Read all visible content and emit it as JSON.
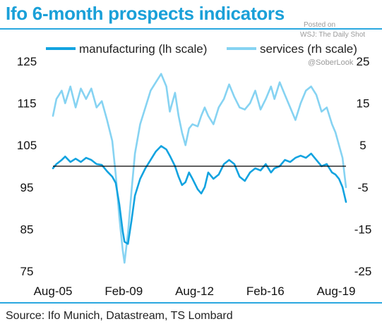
{
  "header": {
    "title": "Ifo 6-month prospects indicators"
  },
  "watermark": {
    "line1": "Posted on",
    "line2": "WSJ: The Daily Shot",
    "line3": "@SoberLook"
  },
  "footer": {
    "source": "Source: Ifo Munich, Datastream, TS Lombard"
  },
  "colors": {
    "brand": "#1aa0d8",
    "manufacturing": "#12a3e0",
    "services": "#86d3f2",
    "reference_line": "#000000"
  },
  "chart_data": {
    "type": "line",
    "title": "Ifo 6-month prospects indicators",
    "x_tick_labels": [
      "Aug-05",
      "Feb-09",
      "Aug-12",
      "Feb-16",
      "Aug-19"
    ],
    "x_range": [
      "2005-08",
      "2019-08"
    ],
    "y_left": {
      "ticks": [
        125,
        115,
        105,
        95,
        85,
        75
      ],
      "range": [
        75,
        125
      ]
    },
    "y_right": {
      "ticks": [
        25,
        15,
        5,
        -5,
        -15,
        -25
      ],
      "range": [
        -25,
        25
      ]
    },
    "reference_line": {
      "axis": "left",
      "value": 100
    },
    "grid": false,
    "legend": {
      "position": "top"
    },
    "series": [
      {
        "name": "manufacturing (lh scale)",
        "axis": "left",
        "color": "#12a3e0",
        "points": [
          [
            "2005-08",
            99.5
          ],
          [
            "2005-10",
            100.5
          ],
          [
            "2006-01",
            101.5
          ],
          [
            "2006-03",
            102.3
          ],
          [
            "2006-06",
            101.0
          ],
          [
            "2006-09",
            101.8
          ],
          [
            "2006-12",
            101.0
          ],
          [
            "2007-03",
            102.0
          ],
          [
            "2007-06",
            101.5
          ],
          [
            "2007-09",
            100.5
          ],
          [
            "2007-12",
            100.3
          ],
          [
            "2008-03",
            98.8
          ],
          [
            "2008-06",
            97.5
          ],
          [
            "2008-08",
            96.0
          ],
          [
            "2008-10",
            91.0
          ],
          [
            "2008-12",
            84.5
          ],
          [
            "2009-01",
            82.0
          ],
          [
            "2009-03",
            81.5
          ],
          [
            "2009-05",
            87.0
          ],
          [
            "2009-07",
            93.0
          ],
          [
            "2009-10",
            97.0
          ],
          [
            "2010-01",
            99.5
          ],
          [
            "2010-04",
            101.5
          ],
          [
            "2010-07",
            103.5
          ],
          [
            "2010-10",
            104.8
          ],
          [
            "2011-01",
            104.0
          ],
          [
            "2011-03",
            102.5
          ],
          [
            "2011-06",
            100.0
          ],
          [
            "2011-08",
            97.5
          ],
          [
            "2011-10",
            95.5
          ],
          [
            "2011-12",
            96.2
          ],
          [
            "2012-02",
            98.5
          ],
          [
            "2012-04",
            97.0
          ],
          [
            "2012-07",
            94.5
          ],
          [
            "2012-09",
            93.5
          ],
          [
            "2012-11",
            95.0
          ],
          [
            "2013-01",
            98.5
          ],
          [
            "2013-04",
            97.0
          ],
          [
            "2013-07",
            98.0
          ],
          [
            "2013-10",
            100.5
          ],
          [
            "2014-01",
            101.5
          ],
          [
            "2014-04",
            100.5
          ],
          [
            "2014-07",
            97.5
          ],
          [
            "2014-10",
            96.5
          ],
          [
            "2015-01",
            98.5
          ],
          [
            "2015-04",
            99.5
          ],
          [
            "2015-07",
            99.0
          ],
          [
            "2015-10",
            100.5
          ],
          [
            "2016-01",
            98.5
          ],
          [
            "2016-03",
            99.5
          ],
          [
            "2016-06",
            100.0
          ],
          [
            "2016-09",
            101.5
          ],
          [
            "2016-12",
            101.0
          ],
          [
            "2017-03",
            102.0
          ],
          [
            "2017-06",
            102.5
          ],
          [
            "2017-09",
            102.0
          ],
          [
            "2017-12",
            103.0
          ],
          [
            "2018-03",
            101.5
          ],
          [
            "2018-06",
            100.0
          ],
          [
            "2018-09",
            100.5
          ],
          [
            "2018-12",
            98.5
          ],
          [
            "2019-02",
            98.0
          ],
          [
            "2019-04",
            97.0
          ],
          [
            "2019-06",
            95.0
          ],
          [
            "2019-08",
            91.5
          ]
        ]
      },
      {
        "name": "services (rh scale)",
        "axis": "right",
        "color": "#86d3f2",
        "points": [
          [
            "2005-08",
            12.0
          ],
          [
            "2005-10",
            16.0
          ],
          [
            "2006-01",
            18.0
          ],
          [
            "2006-03",
            15.0
          ],
          [
            "2006-06",
            19.0
          ],
          [
            "2006-09",
            14.0
          ],
          [
            "2006-12",
            18.5
          ],
          [
            "2007-03",
            16.0
          ],
          [
            "2007-06",
            18.5
          ],
          [
            "2007-09",
            14.0
          ],
          [
            "2007-12",
            15.5
          ],
          [
            "2008-03",
            11.0
          ],
          [
            "2008-06",
            6.0
          ],
          [
            "2008-08",
            -2.0
          ],
          [
            "2008-10",
            -12.0
          ],
          [
            "2008-12",
            -20.0
          ],
          [
            "2009-01",
            -23.0
          ],
          [
            "2009-03",
            -16.0
          ],
          [
            "2009-05",
            -6.0
          ],
          [
            "2009-07",
            3.0
          ],
          [
            "2009-10",
            10.0
          ],
          [
            "2010-01",
            14.0
          ],
          [
            "2010-04",
            18.0
          ],
          [
            "2010-07",
            20.0
          ],
          [
            "2010-10",
            22.0
          ],
          [
            "2011-01",
            19.0
          ],
          [
            "2011-03",
            13.0
          ],
          [
            "2011-06",
            17.5
          ],
          [
            "2011-08",
            12.0
          ],
          [
            "2011-10",
            8.0
          ],
          [
            "2011-12",
            5.0
          ],
          [
            "2012-02",
            9.0
          ],
          [
            "2012-04",
            10.0
          ],
          [
            "2012-07",
            9.5
          ],
          [
            "2012-09",
            12.0
          ],
          [
            "2012-11",
            14.0
          ],
          [
            "2013-01",
            12.0
          ],
          [
            "2013-04",
            10.0
          ],
          [
            "2013-07",
            14.0
          ],
          [
            "2013-10",
            16.0
          ],
          [
            "2014-01",
            19.5
          ],
          [
            "2014-04",
            16.5
          ],
          [
            "2014-07",
            14.0
          ],
          [
            "2014-10",
            13.5
          ],
          [
            "2015-01",
            15.0
          ],
          [
            "2015-04",
            18.0
          ],
          [
            "2015-07",
            13.5
          ],
          [
            "2015-10",
            16.0
          ],
          [
            "2016-01",
            19.0
          ],
          [
            "2016-03",
            16.0
          ],
          [
            "2016-06",
            20.0
          ],
          [
            "2016-09",
            17.0
          ],
          [
            "2016-12",
            14.0
          ],
          [
            "2017-03",
            11.0
          ],
          [
            "2017-06",
            15.0
          ],
          [
            "2017-09",
            18.0
          ],
          [
            "2017-12",
            19.0
          ],
          [
            "2018-03",
            17.0
          ],
          [
            "2018-06",
            13.0
          ],
          [
            "2018-09",
            14.0
          ],
          [
            "2018-12",
            10.0
          ],
          [
            "2019-02",
            8.0
          ],
          [
            "2019-04",
            5.0
          ],
          [
            "2019-06",
            2.0
          ],
          [
            "2019-08",
            -5.0
          ]
        ]
      }
    ]
  }
}
